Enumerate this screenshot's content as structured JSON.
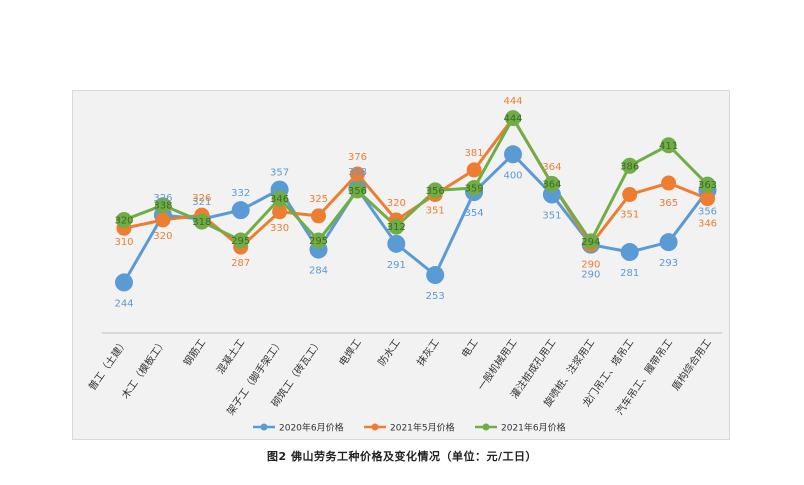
{
  "chart_data": {
    "type": "line",
    "caption": "图2   佛山劳务工种价格及变化情况（单位：元/工日）",
    "categories": [
      "普工（土建）",
      "木工（模板工）",
      "钢筋工",
      "混凝土工",
      "架子工（脚手架工）",
      "砌筑工（砖瓦工）",
      "电焊工",
      "防水工",
      "抹灰工",
      "电工",
      "一般机械用工",
      "灌注桩成孔用工",
      "旋喷桩、注浆用工",
      "龙门吊工、塔吊工",
      "汽车吊工、履带吊工",
      "盾构综合用工"
    ],
    "series": [
      {
        "name": "2020年6月价格",
        "color": "#5b9bd5",
        "values": [
          244,
          326,
          321,
          332,
          357,
          284,
          358,
          291,
          253,
          354,
          400,
          351,
          290,
          281,
          293,
          356
        ]
      },
      {
        "name": "2021年5月价格",
        "color": "#ed7d31",
        "values": [
          310,
          320,
          326,
          287,
          330,
          325,
          376,
          320,
          351,
          381,
          444,
          364,
          290,
          351,
          365,
          346
        ]
      },
      {
        "name": "2021年6月价格",
        "color": "#70ad47",
        "values": [
          320,
          338,
          318,
          295,
          346,
          295,
          356,
          312,
          356,
          359,
          444,
          364,
          294,
          386,
          411,
          363
        ]
      }
    ],
    "ylim": [
      180,
      460
    ],
    "grid": false,
    "legend_position": "bottom"
  }
}
